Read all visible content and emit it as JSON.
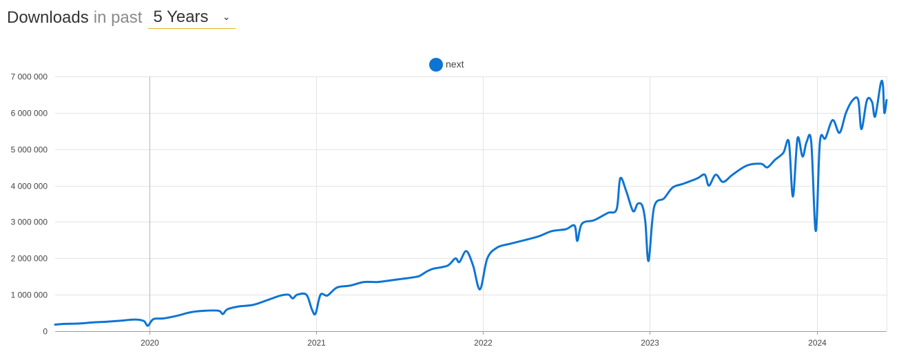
{
  "header": {
    "title": "Downloads",
    "in_past": "in past",
    "period": "5 Years",
    "chevron_icon": "chevron-down-icon"
  },
  "chart_data": {
    "type": "line",
    "title": "",
    "xlabel": "",
    "ylabel": "",
    "legend_position": "top-center",
    "grid": true,
    "ylim": [
      0,
      7000000
    ],
    "xlim": [
      "2019-06-09",
      "2024-06-02"
    ],
    "y_ticks": [
      0,
      1000000,
      2000000,
      3000000,
      4000000,
      5000000,
      6000000,
      7000000
    ],
    "y_tick_labels": [
      "0",
      "1 000 000",
      "2 000 000",
      "3 000 000",
      "4 000 000",
      "5 000 000",
      "6 000 000",
      "7 000 000"
    ],
    "x_ticks": [
      "2020-01-01",
      "2021-01-01",
      "2022-01-01",
      "2023-01-01",
      "2024-01-01"
    ],
    "x_tick_labels": [
      "2020",
      "2021",
      "2022",
      "2023",
      "2024"
    ],
    "series": [
      {
        "name": "next",
        "color": "#0d74d3",
        "points": [
          [
            "2019-06-09",
            180000
          ],
          [
            "2019-07-01",
            200000
          ],
          [
            "2019-08-01",
            210000
          ],
          [
            "2019-09-01",
            240000
          ],
          [
            "2019-10-01",
            260000
          ],
          [
            "2019-11-01",
            290000
          ],
          [
            "2019-12-01",
            320000
          ],
          [
            "2019-12-20",
            280000
          ],
          [
            "2019-12-29",
            150000
          ],
          [
            "2020-01-10",
            330000
          ],
          [
            "2020-02-01",
            350000
          ],
          [
            "2020-03-01",
            420000
          ],
          [
            "2020-04-01",
            520000
          ],
          [
            "2020-05-01",
            560000
          ],
          [
            "2020-06-01",
            560000
          ],
          [
            "2020-06-10",
            470000
          ],
          [
            "2020-06-20",
            600000
          ],
          [
            "2020-07-15",
            680000
          ],
          [
            "2020-08-15",
            720000
          ],
          [
            "2020-09-15",
            850000
          ],
          [
            "2020-10-15",
            980000
          ],
          [
            "2020-11-01",
            1000000
          ],
          [
            "2020-11-10",
            900000
          ],
          [
            "2020-11-20",
            1000000
          ],
          [
            "2020-12-10",
            1000000
          ],
          [
            "2020-12-22",
            600000
          ],
          [
            "2020-12-30",
            480000
          ],
          [
            "2021-01-10",
            1000000
          ],
          [
            "2021-01-25",
            980000
          ],
          [
            "2021-02-15",
            1200000
          ],
          [
            "2021-03-15",
            1250000
          ],
          [
            "2021-04-15",
            1350000
          ],
          [
            "2021-05-15",
            1350000
          ],
          [
            "2021-06-15",
            1400000
          ],
          [
            "2021-07-15",
            1450000
          ],
          [
            "2021-08-01",
            1480000
          ],
          [
            "2021-08-15",
            1520000
          ],
          [
            "2021-09-01",
            1650000
          ],
          [
            "2021-09-15",
            1720000
          ],
          [
            "2021-10-15",
            1800000
          ],
          [
            "2021-11-01",
            2000000
          ],
          [
            "2021-11-10",
            1900000
          ],
          [
            "2021-11-25",
            2200000
          ],
          [
            "2021-12-10",
            1800000
          ],
          [
            "2021-12-25",
            1150000
          ],
          [
            "2022-01-10",
            2000000
          ],
          [
            "2022-02-01",
            2300000
          ],
          [
            "2022-03-01",
            2400000
          ],
          [
            "2022-04-01",
            2500000
          ],
          [
            "2022-05-01",
            2600000
          ],
          [
            "2022-06-01",
            2750000
          ],
          [
            "2022-07-01",
            2800000
          ],
          [
            "2022-07-20",
            2900000
          ],
          [
            "2022-07-26",
            2480000
          ],
          [
            "2022-08-05",
            2950000
          ],
          [
            "2022-09-01",
            3050000
          ],
          [
            "2022-10-01",
            3250000
          ],
          [
            "2022-10-20",
            3350000
          ],
          [
            "2022-10-28",
            4200000
          ],
          [
            "2022-11-10",
            3850000
          ],
          [
            "2022-11-25",
            3300000
          ],
          [
            "2022-12-05",
            3500000
          ],
          [
            "2022-12-15",
            3450000
          ],
          [
            "2022-12-22",
            3000000
          ],
          [
            "2022-12-29",
            1930000
          ],
          [
            "2023-01-10",
            3400000
          ],
          [
            "2023-02-01",
            3650000
          ],
          [
            "2023-02-20",
            3950000
          ],
          [
            "2023-03-15",
            4050000
          ],
          [
            "2023-04-15",
            4200000
          ],
          [
            "2023-05-01",
            4300000
          ],
          [
            "2023-05-10",
            4000000
          ],
          [
            "2023-05-25",
            4300000
          ],
          [
            "2023-06-10",
            4100000
          ],
          [
            "2023-07-01",
            4300000
          ],
          [
            "2023-08-01",
            4550000
          ],
          [
            "2023-09-01",
            4600000
          ],
          [
            "2023-09-15",
            4500000
          ],
          [
            "2023-10-01",
            4700000
          ],
          [
            "2023-10-20",
            4900000
          ],
          [
            "2023-11-01",
            5200000
          ],
          [
            "2023-11-10",
            3700000
          ],
          [
            "2023-11-20",
            5300000
          ],
          [
            "2023-12-01",
            4800000
          ],
          [
            "2023-12-10",
            5200000
          ],
          [
            "2023-12-20",
            5200000
          ],
          [
            "2023-12-30",
            2750000
          ],
          [
            "2024-01-08",
            5200000
          ],
          [
            "2024-01-20",
            5300000
          ],
          [
            "2024-02-05",
            5800000
          ],
          [
            "2024-02-20",
            5450000
          ],
          [
            "2024-03-05",
            6000000
          ],
          [
            "2024-03-20",
            6350000
          ],
          [
            "2024-04-01",
            6350000
          ],
          [
            "2024-04-08",
            5550000
          ],
          [
            "2024-04-20",
            6350000
          ],
          [
            "2024-05-01",
            6300000
          ],
          [
            "2024-05-08",
            5900000
          ],
          [
            "2024-05-20",
            6800000
          ],
          [
            "2024-05-25",
            6750000
          ],
          [
            "2024-05-28",
            6000000
          ],
          [
            "2024-06-02",
            6350000
          ]
        ]
      }
    ]
  }
}
